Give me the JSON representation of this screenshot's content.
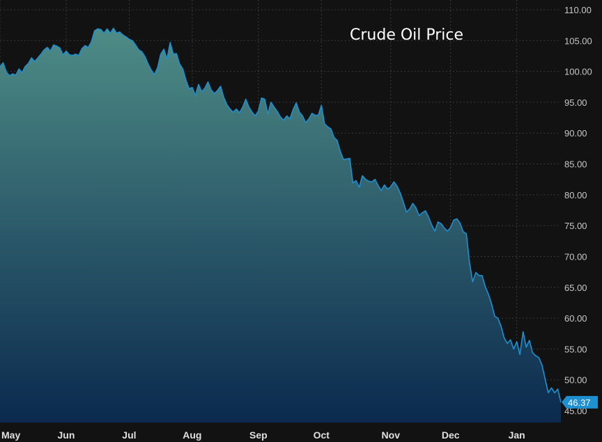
{
  "chart_data": {
    "type": "area",
    "title": "Crude Oil Price",
    "xlabel": "",
    "ylabel": "",
    "ylim": [
      44,
      111.5
    ],
    "grid": true,
    "colors": {
      "line": "#1e90d0",
      "fill_top": "#4e8c86",
      "fill_bottom": "#0b2a4e",
      "background": "#121212",
      "last_badge": "#1e8fcf"
    },
    "y_ticks": [
      "45.00",
      "50.00",
      "55.00",
      "60.00",
      "65.00",
      "70.00",
      "75.00",
      "80.00",
      "85.00",
      "90.00",
      "95.00",
      "100.00",
      "105.00",
      "110.00"
    ],
    "x_ticks": [
      {
        "label": "May",
        "i": 0
      },
      {
        "label": "Jun",
        "i": 21
      },
      {
        "label": "Jul",
        "i": 41
      },
      {
        "label": "Aug",
        "i": 61
      },
      {
        "label": "Sep",
        "i": 82
      },
      {
        "label": "Oct",
        "i": 102
      },
      {
        "label": "Nov",
        "i": 124
      },
      {
        "label": "Dec",
        "i": 143
      },
      {
        "label": "Jan",
        "i": 164
      }
    ],
    "last_value": "46.37",
    "values": [
      100.8,
      101.4,
      99.9,
      99.3,
      99.6,
      99.4,
      100.4,
      99.8,
      100.8,
      101.3,
      102.2,
      101.6,
      102.2,
      102.8,
      103.5,
      103.9,
      103.3,
      104.3,
      104.1,
      103.8,
      102.7,
      103.3,
      102.7,
      102.6,
      102.8,
      102.6,
      103.7,
      104.2,
      103.9,
      104.8,
      106.6,
      106.9,
      106.8,
      106.2,
      106.9,
      106.2,
      107.0,
      106.2,
      106.4,
      105.9,
      105.6,
      105.2,
      105.0,
      104.3,
      103.5,
      103.2,
      102.4,
      101.2,
      100.2,
      99.5,
      100.6,
      102.8,
      103.6,
      102.0,
      104.7,
      102.8,
      102.9,
      101.2,
      100.4,
      98.6,
      97.2,
      97.4,
      96.1,
      97.9,
      96.7,
      97.3,
      98.3,
      97.0,
      96.4,
      96.9,
      97.6,
      95.8,
      94.6,
      93.9,
      93.4,
      93.9,
      93.3,
      94.2,
      95.5,
      94.2,
      93.4,
      92.8,
      93.6,
      95.7,
      95.5,
      93.1,
      95.0,
      94.2,
      93.5,
      92.6,
      92.1,
      92.8,
      92.3,
      93.8,
      94.9,
      93.4,
      92.8,
      91.7,
      92.3,
      93.2,
      92.9,
      92.9,
      94.5,
      91.5,
      91.0,
      90.7,
      89.3,
      88.8,
      87.0,
      85.7,
      85.8,
      85.9,
      81.9,
      82.3,
      81.2,
      83.1,
      82.5,
      82.2,
      82.1,
      82.5,
      81.5,
      80.7,
      81.6,
      80.9,
      81.3,
      82.1,
      81.4,
      80.3,
      78.8,
      77.2,
      77.7,
      78.6,
      77.9,
      76.6,
      77.1,
      77.4,
      76.4,
      75.1,
      74.1,
      75.6,
      75.3,
      74.6,
      74.1,
      74.7,
      75.9,
      76.1,
      75.4,
      74.0,
      73.7,
      69.0,
      65.9,
      67.4,
      66.9,
      66.9,
      65.1,
      63.9,
      62.3,
      60.3,
      60.0,
      58.7,
      56.8,
      55.9,
      56.5,
      55.0,
      56.2,
      54.1,
      57.8,
      55.3,
      56.4,
      54.4,
      53.9,
      53.6,
      52.4,
      50.1,
      47.9,
      48.7,
      47.9,
      48.5,
      46.37
    ]
  }
}
